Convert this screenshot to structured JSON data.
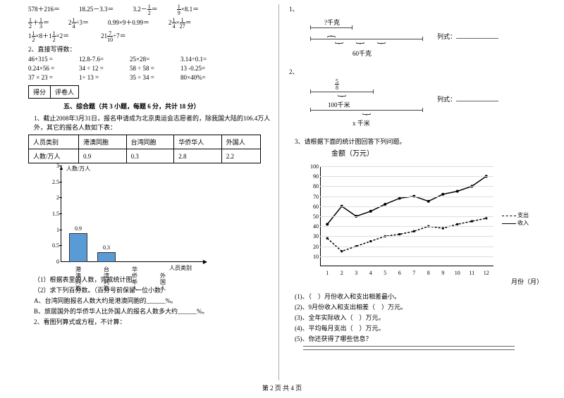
{
  "leftCol": {
    "mathRows": [
      "578＋216＝　　　　18.25－3.3＝　　　　3.2－ 1/2 ＝　　　　1/9 ×8.1＝",
      "1/2 ＋ 1/3 ＝　　　　2 1/4 ÷3＝　　　　0.99×9＋0.99＝　　　　2 1/4 × 1/27 ＝",
      "1 1/2 ×8＋1 1/2 ×2＝　　　　　　21 7/10 ÷7＝"
    ],
    "q2_title": "2、直接写得数：",
    "grid": [
      [
        "46+315 =",
        "12.8-7.6=",
        "25×28=",
        "3.14÷0.1="
      ],
      [
        "0.24×56 =",
        "34 ÷ 12 =",
        "58 ÷ 58 =",
        "13 -0.25="
      ],
      [
        "37 × 23 =",
        "1÷ 13 =",
        "35 ÷ 34 =",
        "80×40%="
      ]
    ],
    "scoreLabels": [
      "得分",
      "评卷人"
    ],
    "sectionTitle": "五、综合题（共 3 小题，每题 6 分，共计 18 分）",
    "q1_text": "1、截止2008年3月31日，报名申请成为北京奥运会志愿者的，除我国大陆的106.4万人外，其它的报名人数如下表：",
    "table": {
      "headers": [
        "人员类别",
        "港澳同胞",
        "台湾同胞",
        "华侨华人",
        "外国人"
      ],
      "row": [
        "人数/万人",
        "0.9",
        "0.3",
        "2.8",
        "2.2"
      ]
    },
    "barChart": {
      "yLabel": "人数/万人",
      "xLabel": "人员类别",
      "yTicks": [
        "0.5",
        "1",
        "1.5",
        "2",
        "2.5",
        "3"
      ],
      "cats": [
        "港澳同胞",
        "台湾同胞",
        "华侨华人",
        "外国人"
      ],
      "bars": [
        {
          "label": "0.9",
          "value": 0.9,
          "color": "#5b9bd5"
        },
        {
          "label": "0.3",
          "value": 0.3,
          "color": "#5b9bd5"
        }
      ],
      "yMax": 3.0
    },
    "subQ": [
      "（1）根据表里的人数，完成统计图。",
      "（2）求下列百分数。（百分号前保留一位小数）",
      "A、台湾同胞报名人数大约是港澳同胞的______%。",
      "B、旅居国外的华侨华人比外国人的报名人数多大约______%。"
    ],
    "q2_bottom": "2、看图列算式或方程，不计算："
  },
  "rightCol": {
    "q1": "1、",
    "d1": {
      "top": "?千克",
      "bottom": "60千克",
      "answer": "列式："
    },
    "q2": "2、",
    "d2": {
      "frac": "5/8",
      "mid": "100千米",
      "bottom": "x 千米",
      "answer": "列式："
    },
    "q3": "3、请根据下面的统计图回答下列问题。",
    "chartTitle": "金额（万元）",
    "lineChart": {
      "yTicks": [
        10,
        20,
        30,
        40,
        50,
        60,
        70,
        80,
        90,
        100
      ],
      "xTicks": [
        1,
        2,
        3,
        4,
        5,
        6,
        7,
        8,
        9,
        10,
        11,
        12
      ],
      "income": [
        42,
        60,
        50,
        55,
        62,
        68,
        70,
        65,
        72,
        75,
        80,
        90
      ],
      "expense": [
        28,
        15,
        20,
        25,
        30,
        32,
        35,
        40,
        38,
        42,
        45,
        48
      ],
      "legend": {
        "expense": "支出",
        "income": "收入"
      },
      "incomeColor": "#000000",
      "expenseColor": "#000000",
      "xAxisLabel": "月份（月）"
    },
    "subQ": [
      "(1)、（　）月份收入和支出相差最小。",
      "(2)、9月份收入和支出相差（　）万元。",
      "(3)、全年实际收入（　）万元。",
      "(4)、平均每月支出（　）万元。",
      "(5)、你还获得了哪些信息？"
    ]
  },
  "footer": "第 2 页 共 4 页"
}
